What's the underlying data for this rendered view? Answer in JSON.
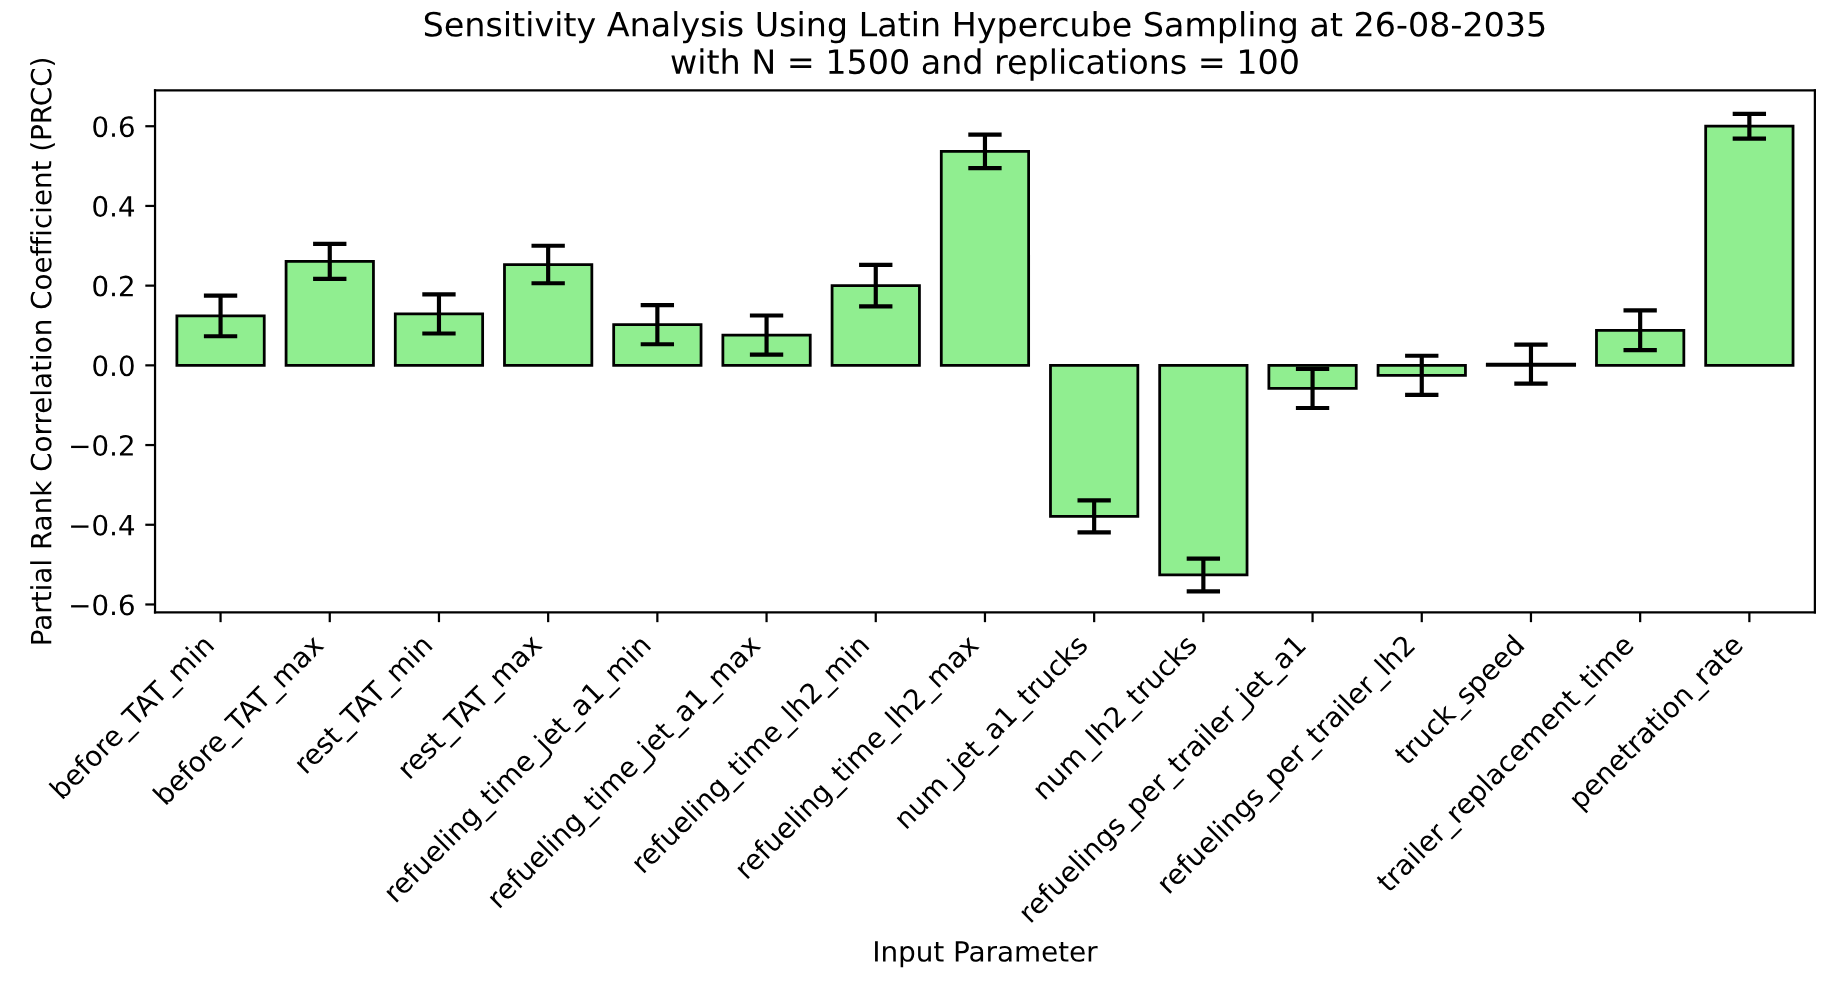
{
  "chart_data": {
    "type": "bar",
    "title": "Sensitivity Analysis Using Latin Hypercube Sampling at 26-08-2035\nwith N = 1500 and replications = 100",
    "xlabel": "Input Parameter",
    "ylabel": "Partial Rank Correlation Coefficient (PRCC)",
    "categories": [
      "before_TAT_min",
      "before_TAT_max",
      "rest_TAT_min",
      "rest_TAT_max",
      "refueling_time_jet_a1_min",
      "refueling_time_jet_a1_max",
      "refueling_time_lh2_min",
      "refueling_time_lh2_max",
      "num_jet_a1_trucks",
      "num_lh2_trucks",
      "refuelings_per_trailer_jet_a1",
      "refuelings_per_trailer_lh2",
      "truck_speed",
      "trailer_replacement_time",
      "penetration_rate"
    ],
    "values": [
      0.124,
      0.261,
      0.129,
      0.253,
      0.102,
      0.076,
      0.2,
      0.537,
      -0.379,
      -0.526,
      -0.058,
      -0.025,
      0.003,
      0.088,
      0.6
    ],
    "errors": [
      0.051,
      0.044,
      0.049,
      0.047,
      0.049,
      0.049,
      0.052,
      0.042,
      0.04,
      0.041,
      0.049,
      0.049,
      0.049,
      0.05,
      0.031
    ],
    "color": "#90ee90",
    "ylim": [
      -0.62,
      0.69
    ],
    "yticks": [
      {
        "value": -0.6,
        "label": "−0.6"
      },
      {
        "value": -0.4,
        "label": "−0.4"
      },
      {
        "value": -0.2,
        "label": "−0.2"
      },
      {
        "value": 0.0,
        "label": "0.0"
      },
      {
        "value": 0.2,
        "label": "0.2"
      },
      {
        "value": 0.4,
        "label": "0.4"
      },
      {
        "value": 0.6,
        "label": "0.6"
      }
    ],
    "grid": false,
    "legend": false
  }
}
